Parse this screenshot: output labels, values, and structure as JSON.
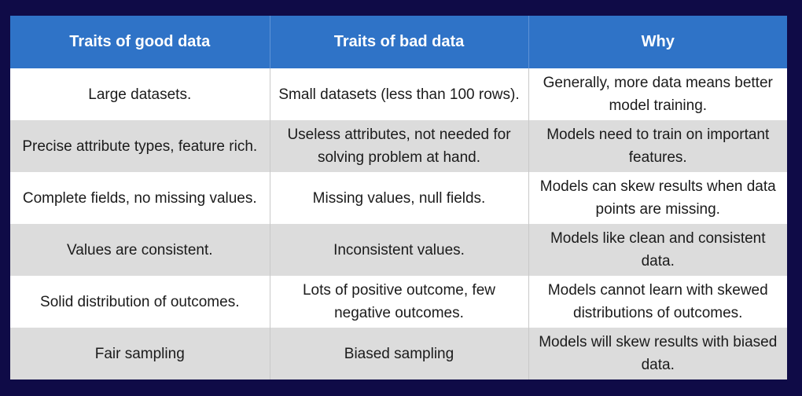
{
  "table": {
    "headers": [
      "Traits of good data",
      "Traits of bad data",
      "Why"
    ],
    "rows": [
      [
        "Large datasets.",
        "Small datasets (less than 100 rows).",
        "Generally, more data means better model training."
      ],
      [
        "Precise attribute types, feature rich.",
        "Useless attributes, not needed for solving problem at hand.",
        "Models need to train on important features."
      ],
      [
        "Complete fields, no missing values.",
        "Missing values, null fields.",
        "Models can skew results when data points are missing."
      ],
      [
        "Values are consistent.",
        "Inconsistent values.",
        "Models like clean and consistent data."
      ],
      [
        "Solid distribution of outcomes.",
        "Lots of positive outcome, few negative outcomes.",
        "Models cannot learn with skewed distributions of outcomes."
      ],
      [
        "Fair sampling",
        "Biased sampling",
        "Models will skew results with biased data."
      ]
    ]
  },
  "colors": {
    "background": "#0f0b47",
    "header": "#2f73c7",
    "row_light": "#ffffff",
    "row_shaded": "#dcdcdc"
  }
}
